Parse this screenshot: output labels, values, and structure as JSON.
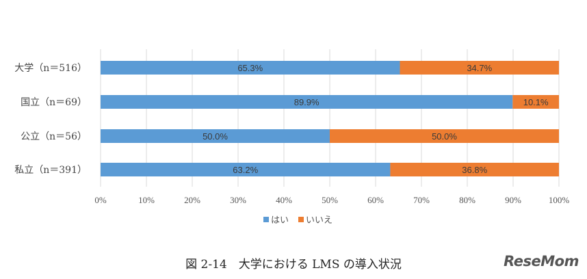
{
  "chart_data": {
    "type": "bar",
    "orientation": "horizontal",
    "stacked": true,
    "categories": [
      "大学（n＝516）",
      "国立（n＝69）",
      "公立（n＝56）",
      "私立（n＝391）"
    ],
    "series": [
      {
        "name": "はい",
        "color": "#5B9BD5",
        "values": [
          65.3,
          89.9,
          50.0,
          63.2
        ],
        "labels": [
          "65.3%",
          "89.9%",
          "50.0%",
          "63.2%"
        ]
      },
      {
        "name": "いいえ",
        "color": "#ED7D31",
        "values": [
          34.7,
          10.1,
          50.0,
          36.8
        ],
        "labels": [
          "34.7%",
          "10.1%",
          "50.0%",
          "36.8%"
        ]
      }
    ],
    "xlim": [
      0,
      100
    ],
    "xticks": [
      "0%",
      "10%",
      "20%",
      "30%",
      "40%",
      "50%",
      "60%",
      "70%",
      "80%",
      "90%",
      "100%"
    ],
    "grid": true,
    "legend": "bottom"
  },
  "caption": "図 2-14　大学における LMS の導入状況",
  "logo": "ReseMom"
}
